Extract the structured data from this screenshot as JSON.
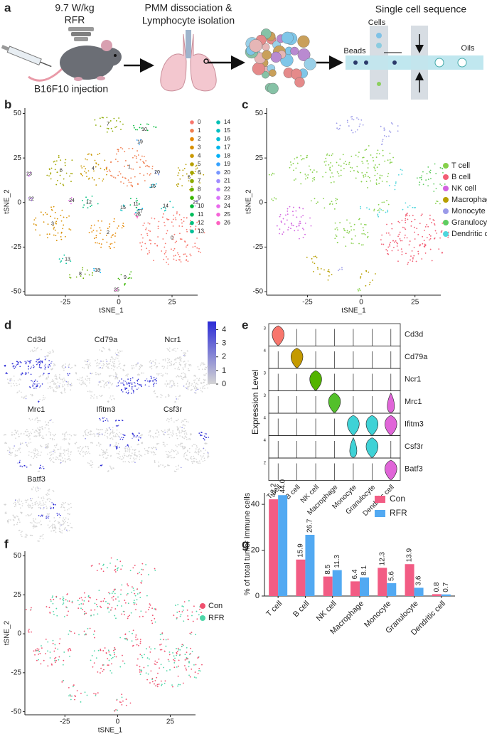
{
  "diagram": {
    "panel": "a",
    "dose": "9.7 W/kg",
    "group": "RFR",
    "injection": "B16F10 injection",
    "dissociation": [
      "PMM dissociation &",
      "Lymphocyte isolation"
    ],
    "sequencing": "Single cell sequence",
    "chip_labels": [
      "Cells",
      "Beads",
      "Oils"
    ]
  },
  "chart_data": [
    {
      "type": "scatter",
      "panel": "b",
      "xlabel": "tSNE_1",
      "ylabel": "tSNE_2",
      "xlim": [
        -44,
        37
      ],
      "ylim": [
        -52,
        53
      ],
      "xticks": [
        -25,
        0,
        25
      ],
      "yticks": [
        -50,
        -25,
        0,
        25,
        50
      ],
      "clusters": [
        {
          "name": "0",
          "color": "#F8766D"
        },
        {
          "name": "1",
          "color": "#F07E4F"
        },
        {
          "name": "2",
          "color": "#E58700"
        },
        {
          "name": "3",
          "color": "#D89000"
        },
        {
          "name": "4",
          "color": "#C99800"
        },
        {
          "name": "5",
          "color": "#B79F00"
        },
        {
          "name": "6",
          "color": "#A3A500"
        },
        {
          "name": "7",
          "color": "#8BAB00"
        },
        {
          "name": "8",
          "color": "#6BB100"
        },
        {
          "name": "9",
          "color": "#39B600"
        },
        {
          "name": "10",
          "color": "#00BA38"
        },
        {
          "name": "11",
          "color": "#00BD5C"
        },
        {
          "name": "12",
          "color": "#00BF7D"
        },
        {
          "name": "13",
          "color": "#00C19A"
        },
        {
          "name": "14",
          "color": "#00C0B4"
        },
        {
          "name": "15",
          "color": "#00BFC4"
        },
        {
          "name": "16",
          "color": "#00BCD8"
        },
        {
          "name": "17",
          "color": "#00B6EB"
        },
        {
          "name": "18",
          "color": "#00B0F6"
        },
        {
          "name": "19",
          "color": "#35A2FF"
        },
        {
          "name": "20",
          "color": "#7997FF"
        },
        {
          "name": "21",
          "color": "#9F8CFF"
        },
        {
          "name": "22",
          "color": "#BE80FF"
        },
        {
          "name": "23",
          "color": "#DA72FB"
        },
        {
          "name": "24",
          "color": "#EA6AEC"
        },
        {
          "name": "25",
          "color": "#F565D8"
        },
        {
          "name": "26",
          "color": "#FD61C0"
        }
      ]
    },
    {
      "type": "scatter",
      "panel": "c",
      "xlabel": "tSNE_1",
      "ylabel": "tSNE_2",
      "xlim": [
        -44,
        37
      ],
      "ylim": [
        -52,
        53
      ],
      "xticks": [
        -25,
        0,
        25
      ],
      "yticks": [
        -50,
        -25,
        0,
        25,
        50
      ],
      "groups": [
        {
          "name": "T cell",
          "color": "#86D04A"
        },
        {
          "name": "B cell",
          "color": "#F25E74"
        },
        {
          "name": "NK cell",
          "color": "#D262E0"
        },
        {
          "name": "Macrophage",
          "color": "#B79F00"
        },
        {
          "name": "Monocyte",
          "color": "#9A9AE8"
        },
        {
          "name": "Granulocyte",
          "color": "#5ECC60"
        },
        {
          "name": "Dendritic cell",
          "color": "#4FD6DC"
        }
      ]
    },
    {
      "type": "feature",
      "panel": "d",
      "genes": [
        "Cd3d",
        "Cd79a",
        "Ncr1",
        "Mrc1",
        "Ifitm3",
        "Csf3r",
        "Batf3"
      ],
      "clim": [
        0,
        4.6
      ],
      "cticks": [
        0,
        1,
        2,
        3,
        4
      ],
      "low_color": "#d4d4d4",
      "high_color": "#2b2bd6"
    },
    {
      "type": "violin",
      "panel": "e",
      "ylabel": "Expression Level",
      "genes": [
        "Cd3d",
        "Cd79a",
        "Ncr1",
        "Mrc1",
        "Ifitm3",
        "Csf3r",
        "Batf3"
      ],
      "categories": [
        "T cell",
        "B cell",
        "NK cell",
        "Macrophage",
        "Monocyte",
        "Granulocyte",
        "Dendritic cell"
      ],
      "row_ticks": [
        3,
        4,
        3,
        3,
        4,
        4,
        2
      ],
      "colors": [
        "#F8766D",
        "#C49A00",
        "#53B400",
        "#53C02A",
        "#3FD2D6",
        "#3FD2D6",
        "#E065D8"
      ]
    },
    {
      "type": "scatter",
      "panel": "f",
      "xlabel": "tSNE_1",
      "ylabel": "tSNE_2",
      "xlim": [
        -44,
        37
      ],
      "ylim": [
        -52,
        53
      ],
      "xticks": [
        -25,
        0,
        25
      ],
      "yticks": [
        -50,
        -25,
        0,
        25,
        50
      ],
      "groups": [
        {
          "name": "Con",
          "color": "#F0506E"
        },
        {
          "name": "RFR",
          "color": "#4FD6A8"
        }
      ]
    },
    {
      "type": "bar",
      "panel": "g",
      "ylabel": "% of total tumor immune cells",
      "categories": [
        "T cell",
        "B cell",
        "NK cell",
        "Macrophage",
        "Monocyte",
        "Granulocyte",
        "Dendritic cell"
      ],
      "ylim": [
        0,
        45
      ],
      "yticks": [
        0,
        20,
        40
      ],
      "series": [
        {
          "name": "Con",
          "color": "#F25C84",
          "values": [
            42.2,
            15.9,
            8.5,
            6.4,
            12.3,
            13.9,
            0.8
          ],
          "value_labels": [
            "42.2",
            "15.9",
            "8.5",
            "6.4",
            "12.3",
            "13.9",
            "0.8"
          ]
        },
        {
          "name": "RFR",
          "color": "#52A9F2",
          "values": [
            44.0,
            26.7,
            11.3,
            8.1,
            5.6,
            3.6,
            0.7
          ],
          "value_labels": [
            "44.0",
            "26.7",
            "11.3",
            "8.1",
            "5.6",
            "3.6",
            "0.7"
          ]
        }
      ]
    }
  ]
}
